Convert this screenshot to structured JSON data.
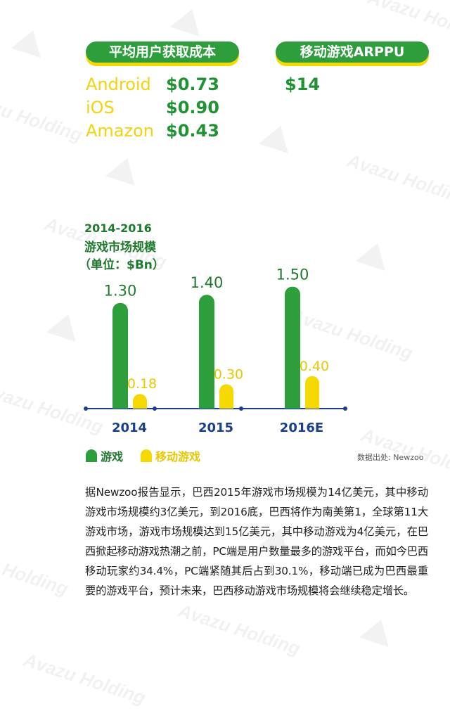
{
  "watermark": {
    "text": "Avazu Holding"
  },
  "acquisition": {
    "header": "平均用户获取成本",
    "rows": [
      {
        "platform": "Android",
        "value": "$0.73"
      },
      {
        "platform": "iOS",
        "value": "$0.90"
      },
      {
        "platform": "Amazon",
        "value": "$0.43"
      }
    ]
  },
  "arppu": {
    "header": "移动游戏ARPPU",
    "value": "$14"
  },
  "chart_data": {
    "type": "bar",
    "title_lines": [
      "2014-2016",
      "游戏市场规模",
      "（单位：$Bn）"
    ],
    "categories": [
      "2014",
      "2015",
      "2016E"
    ],
    "series": [
      {
        "name": "游戏",
        "values": [
          1.3,
          1.4,
          1.5
        ],
        "labels": [
          "1.30",
          "1.40",
          "1.50"
        ],
        "color": "#2e9d3b"
      },
      {
        "name": "移动游戏",
        "values": [
          0.18,
          0.3,
          0.4
        ],
        "labels": [
          "0.18",
          "0.30",
          "0.40"
        ],
        "color": "#f5d800"
      }
    ],
    "ylim": [
      0,
      1.6
    ],
    "grid": false,
    "legend_position": "bottom-left",
    "axis_color": "#1a3f8f"
  },
  "source": "数据出处: Newzoo",
  "paragraph": "据Newzoo报告显示，巴西2015年游戏市场规模为14亿美元，其中移动游戏市场规模约3亿美元，到2016底，巴西将作为南美第1，全球第11大游戏市场，游戏市场规模达到15亿美元，其中移动游戏为4亿美元，在巴西掀起移动游戏热潮之前，PC端是用户数量最多的游戏平台，而如今巴西移动玩家约34.4%，PC端紧随其后占到30.1%，移动端已成为巴西最重要的游戏平台，预计未来，巴西移动游戏市场规模将会继续稳定增长。"
}
